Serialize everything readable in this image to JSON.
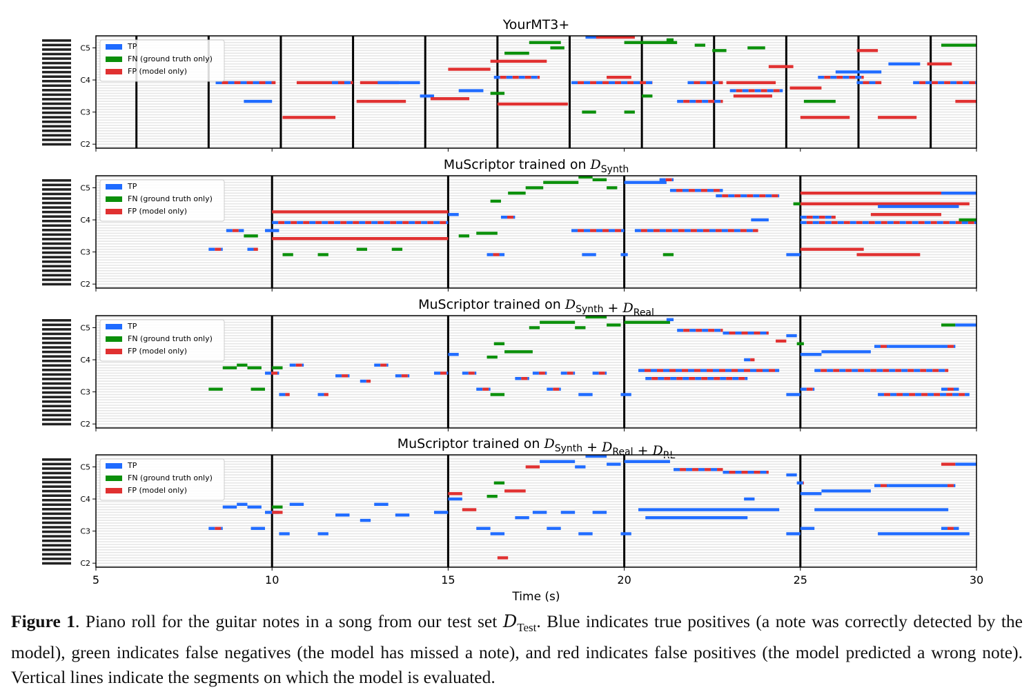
{
  "colors": {
    "tp": "#1f6bff",
    "fn": "#0a8f0a",
    "fp": "#e03030",
    "grid": "#e6e6e6",
    "frame": "#000000"
  },
  "y_ticks": [
    "C2",
    "C3",
    "C4",
    "C5"
  ],
  "x_ticks": [
    "5",
    "10",
    "15",
    "20",
    "25",
    "30"
  ],
  "x_label": "Time (s)",
  "legend": {
    "tp": "TP",
    "fn": "FN (ground truth only)",
    "fp": "FP (model only)"
  },
  "caption": {
    "label": "Figure 1",
    "part1": ". Piano roll for the guitar notes in a song from our test set ",
    "test_sym": "D",
    "test_sub": "Test",
    "part2": ". Blue indicates true positives (a note was correctly detected by the model), green indicates false negatives (the model has missed a note), and red indicates false positives (the model predicted a wrong note). Vertical lines indicate the segments on which the model is evaluated."
  },
  "chart_data": [
    {
      "type": "piano-roll",
      "title": "YourMT3+",
      "xlim": [
        5,
        30
      ],
      "ylim": [
        "C2",
        "C5"
      ],
      "segment_boundaries": [
        6.15,
        8.2,
        10.25,
        12.3,
        14.35,
        16.4,
        18.45,
        20.5,
        22.55,
        24.6,
        26.65,
        28.7
      ],
      "notes": [
        [
          8.4,
          10.1,
          59,
          "mix"
        ],
        [
          9.2,
          10.0,
          52,
          "tp"
        ],
        [
          10.3,
          11.8,
          46,
          "fp"
        ],
        [
          10.7,
          12.2,
          59,
          "fp"
        ],
        [
          11.7,
          12.3,
          59,
          "mix"
        ],
        [
          12.5,
          13.6,
          59,
          "fp"
        ],
        [
          12.4,
          13.8,
          52,
          "fp"
        ],
        [
          13.0,
          14.2,
          59,
          "tp"
        ],
        [
          14.2,
          14.6,
          54,
          "tp"
        ],
        [
          14.5,
          15.6,
          53,
          "fp"
        ],
        [
          15.0,
          16.2,
          64,
          "fp"
        ],
        [
          15.3,
          16.0,
          56,
          "tp"
        ],
        [
          16.2,
          17.8,
          67,
          "fp"
        ],
        [
          16.3,
          17.6,
          61,
          "mix"
        ],
        [
          16.4,
          18.4,
          51,
          "fp"
        ],
        [
          16.2,
          16.6,
          55,
          "fn"
        ],
        [
          16.6,
          17.3,
          70,
          "fn"
        ],
        [
          17.3,
          18.2,
          74,
          "fn"
        ],
        [
          17.9,
          18.3,
          72,
          "fn"
        ],
        [
          18.5,
          20.8,
          59,
          "mix"
        ],
        [
          18.9,
          19.3,
          76,
          "tp"
        ],
        [
          19.2,
          20.3,
          76,
          "fp"
        ],
        [
          19.5,
          20.2,
          61,
          "fp"
        ],
        [
          18.8,
          19.2,
          48,
          "fn"
        ],
        [
          20.0,
          20.3,
          48,
          "fn"
        ],
        [
          20.0,
          21.5,
          74,
          "fn"
        ],
        [
          21.2,
          21.4,
          75,
          "fn"
        ],
        [
          20.5,
          20.8,
          54,
          "fn"
        ],
        [
          21.5,
          22.8,
          52,
          "mix"
        ],
        [
          21.8,
          22.8,
          59,
          "mix"
        ],
        [
          22.0,
          22.3,
          73,
          "fn"
        ],
        [
          22.5,
          22.9,
          71,
          "fn"
        ],
        [
          22.9,
          24.3,
          59,
          "fp"
        ],
        [
          23.0,
          24.5,
          56,
          "mix"
        ],
        [
          23.1,
          24.2,
          54,
          "fp"
        ],
        [
          23.5,
          24.0,
          72,
          "fn"
        ],
        [
          24.1,
          24.8,
          65,
          "fp"
        ],
        [
          24.7,
          25.6,
          57,
          "fp"
        ],
        [
          25.0,
          26.4,
          46,
          "fp"
        ],
        [
          25.1,
          26.0,
          52,
          "fn"
        ],
        [
          25.5,
          26.8,
          61,
          "mix"
        ],
        [
          26.0,
          27.3,
          63,
          "tp"
        ],
        [
          26.6,
          27.2,
          71,
          "fp"
        ],
        [
          26.6,
          27.3,
          59,
          "mix"
        ],
        [
          27.2,
          28.3,
          46,
          "fp"
        ],
        [
          27.5,
          28.4,
          66,
          "tp"
        ],
        [
          28.2,
          30.0,
          59,
          "mix"
        ],
        [
          28.6,
          29.3,
          66,
          "fp"
        ],
        [
          29.0,
          30.0,
          73,
          "fn"
        ],
        [
          29.4,
          30.0,
          52,
          "fp"
        ]
      ]
    },
    {
      "type": "piano-roll",
      "title": "MuScriptor trained on",
      "title_terms": [
        {
          "sym": "D",
          "sub": "Synth"
        }
      ],
      "xlim": [
        5,
        30
      ],
      "ylim": [
        "C2",
        "C5"
      ],
      "segment_boundaries": [
        10,
        15,
        20,
        25
      ],
      "notes": [
        [
          8.2,
          8.6,
          49,
          "mix"
        ],
        [
          8.7,
          9.2,
          56,
          "mix"
        ],
        [
          9.2,
          9.6,
          54,
          "fn"
        ],
        [
          9.3,
          9.6,
          49,
          "mix"
        ],
        [
          9.8,
          10.2,
          56,
          "tp"
        ],
        [
          10.0,
          15.0,
          63,
          "fp"
        ],
        [
          10.0,
          15.0,
          59,
          "mix"
        ],
        [
          10.0,
          15.0,
          53,
          "fp"
        ],
        [
          10.3,
          10.6,
          47,
          "fn"
        ],
        [
          11.3,
          11.6,
          47,
          "fn"
        ],
        [
          12.4,
          12.7,
          49,
          "fn"
        ],
        [
          13.4,
          13.7,
          49,
          "fn"
        ],
        [
          15.0,
          15.3,
          62,
          "tp"
        ],
        [
          15.3,
          15.6,
          54,
          "fn"
        ],
        [
          15.8,
          16.4,
          55,
          "fn"
        ],
        [
          16.1,
          16.6,
          47,
          "mix"
        ],
        [
          16.5,
          16.9,
          61,
          "mix"
        ],
        [
          16.2,
          16.5,
          67,
          "fn"
        ],
        [
          16.7,
          17.2,
          70,
          "fn"
        ],
        [
          17.2,
          17.7,
          72,
          "fn"
        ],
        [
          17.7,
          18.7,
          74,
          "fn"
        ],
        [
          18.7,
          19.1,
          76,
          "fn"
        ],
        [
          19.1,
          19.5,
          75,
          "fn"
        ],
        [
          19.5,
          19.8,
          72,
          "fn"
        ],
        [
          18.5,
          20.0,
          56,
          "mix"
        ],
        [
          18.8,
          19.2,
          47,
          "tp"
        ],
        [
          19.9,
          20.1,
          47,
          "tp"
        ],
        [
          20.0,
          21.2,
          74,
          "tp"
        ],
        [
          21.0,
          21.4,
          75,
          "mix"
        ],
        [
          21.3,
          22.8,
          71,
          "mix"
        ],
        [
          21.1,
          21.4,
          47,
          "fn"
        ],
        [
          20.3,
          23.8,
          56,
          "mix"
        ],
        [
          22.6,
          24.4,
          69,
          "mix"
        ],
        [
          23.6,
          24.1,
          60,
          "tp"
        ],
        [
          24.6,
          25.0,
          47,
          "tp"
        ],
        [
          24.8,
          25.0,
          66,
          "fn"
        ],
        [
          25.0,
          30.0,
          70,
          "fp"
        ],
        [
          25.0,
          29.8,
          66,
          "fp"
        ],
        [
          25.0,
          26.0,
          61,
          "mix"
        ],
        [
          25.0,
          30.0,
          59,
          "mix"
        ],
        [
          25.0,
          26.8,
          49,
          "fp"
        ],
        [
          26.6,
          28.4,
          47,
          "fp"
        ],
        [
          27.0,
          29.0,
          62,
          "fp"
        ],
        [
          27.2,
          29.5,
          65,
          "tp"
        ],
        [
          29.0,
          30.0,
          70,
          "tp"
        ],
        [
          29.5,
          30.0,
          60,
          "fn"
        ]
      ]
    },
    {
      "type": "piano-roll",
      "title": "MuScriptor trained on",
      "title_terms": [
        {
          "sym": "D",
          "sub": "Synth"
        },
        {
          "sym": "D",
          "sub": "Real"
        }
      ],
      "xlim": [
        5,
        30
      ],
      "ylim": [
        "C2",
        "C5"
      ],
      "segment_boundaries": [
        10,
        15,
        20,
        25
      ],
      "notes": [
        [
          8.2,
          8.6,
          49,
          "fn"
        ],
        [
          8.6,
          9.0,
          57,
          "fn"
        ],
        [
          9.0,
          9.3,
          58,
          "fn"
        ],
        [
          9.3,
          9.7,
          57,
          "fn"
        ],
        [
          9.4,
          9.8,
          49,
          "fn"
        ],
        [
          9.8,
          10.2,
          55,
          "mix"
        ],
        [
          10.0,
          10.3,
          57,
          "fn"
        ],
        [
          10.2,
          10.5,
          47,
          "mix"
        ],
        [
          10.5,
          10.9,
          58,
          "mix"
        ],
        [
          11.3,
          11.6,
          47,
          "mix"
        ],
        [
          11.8,
          12.2,
          54,
          "mix"
        ],
        [
          12.5,
          12.8,
          52,
          "mix"
        ],
        [
          12.9,
          13.3,
          58,
          "mix"
        ],
        [
          13.5,
          13.9,
          54,
          "mix"
        ],
        [
          14.6,
          15.0,
          55,
          "mix"
        ],
        [
          15.0,
          15.3,
          62,
          "tp"
        ],
        [
          15.4,
          15.8,
          55,
          "mix"
        ],
        [
          15.8,
          16.2,
          49,
          "mix"
        ],
        [
          16.1,
          16.4,
          61,
          "fn"
        ],
        [
          16.2,
          16.6,
          47,
          "fn"
        ],
        [
          16.3,
          16.6,
          66,
          "fn"
        ],
        [
          16.6,
          17.4,
          63,
          "fn"
        ],
        [
          16.9,
          17.3,
          53,
          "mix"
        ],
        [
          17.4,
          17.8,
          55,
          "mix"
        ],
        [
          17.8,
          18.2,
          49,
          "mix"
        ],
        [
          18.2,
          18.6,
          55,
          "mix"
        ],
        [
          18.7,
          19.1,
          47,
          "tp"
        ],
        [
          19.1,
          19.5,
          55,
          "mix"
        ],
        [
          19.9,
          20.2,
          47,
          "tp"
        ],
        [
          17.3,
          17.6,
          72,
          "fn"
        ],
        [
          17.6,
          18.6,
          74,
          "fn"
        ],
        [
          18.6,
          18.9,
          72,
          "fn"
        ],
        [
          18.9,
          19.5,
          76,
          "fn"
        ],
        [
          19.5,
          19.9,
          73,
          "fn"
        ],
        [
          20.0,
          21.3,
          74,
          "fn"
        ],
        [
          21.2,
          21.4,
          75,
          "tp"
        ],
        [
          21.5,
          22.8,
          71,
          "mix"
        ],
        [
          20.4,
          24.4,
          56,
          "mix"
        ],
        [
          20.6,
          23.5,
          53,
          "mix"
        ],
        [
          22.8,
          24.1,
          70,
          "mix"
        ],
        [
          23.4,
          23.7,
          60,
          "mix"
        ],
        [
          24.3,
          24.6,
          67,
          "fp"
        ],
        [
          24.6,
          24.9,
          69,
          "tp"
        ],
        [
          24.6,
          25.0,
          47,
          "tp"
        ],
        [
          24.9,
          25.1,
          66,
          "fn"
        ],
        [
          25.0,
          25.6,
          62,
          "tp"
        ],
        [
          25.6,
          27.0,
          63,
          "tp"
        ],
        [
          25.4,
          29.2,
          56,
          "mix"
        ],
        [
          25.0,
          25.4,
          49,
          "mix"
        ],
        [
          27.1,
          27.5,
          65,
          "mix"
        ],
        [
          27.5,
          29.0,
          65,
          "tp"
        ],
        [
          29.0,
          29.4,
          65,
          "mix"
        ],
        [
          29.0,
          29.4,
          73,
          "fn"
        ],
        [
          29.4,
          30.0,
          73,
          "tp"
        ],
        [
          27.2,
          29.8,
          47,
          "mix"
        ],
        [
          29.0,
          29.5,
          49,
          "mix"
        ]
      ]
    },
    {
      "type": "piano-roll",
      "title": "MuScriptor trained on",
      "title_terms": [
        {
          "sym": "D",
          "sub": "Synth"
        },
        {
          "sym": "D",
          "sub": "Real"
        },
        {
          "sym": "D",
          "sub": "RL"
        }
      ],
      "xlim": [
        5,
        30
      ],
      "ylim": [
        "C2",
        "C5"
      ],
      "segment_boundaries": [
        10,
        15,
        20,
        25
      ],
      "notes": [
        [
          8.2,
          8.6,
          49,
          "mix"
        ],
        [
          8.6,
          9.0,
          57,
          "tp"
        ],
        [
          9.0,
          9.3,
          58,
          "tp"
        ],
        [
          9.3,
          9.7,
          57,
          "tp"
        ],
        [
          9.4,
          9.8,
          49,
          "tp"
        ],
        [
          9.8,
          10.2,
          55,
          "tp"
        ],
        [
          10.0,
          10.3,
          55,
          "fp"
        ],
        [
          10.0,
          10.3,
          57,
          "fn"
        ],
        [
          10.2,
          10.5,
          47,
          "tp"
        ],
        [
          10.5,
          10.9,
          58,
          "tp"
        ],
        [
          11.3,
          11.6,
          47,
          "tp"
        ],
        [
          11.8,
          12.2,
          54,
          "tp"
        ],
        [
          12.5,
          12.8,
          52,
          "tp"
        ],
        [
          12.9,
          13.3,
          58,
          "tp"
        ],
        [
          13.5,
          13.9,
          54,
          "tp"
        ],
        [
          14.6,
          15.0,
          55,
          "tp"
        ],
        [
          15.0,
          15.4,
          62,
          "fp"
        ],
        [
          15.0,
          15.4,
          60,
          "tp"
        ],
        [
          15.4,
          15.8,
          56,
          "fp"
        ],
        [
          15.8,
          16.2,
          49,
          "tp"
        ],
        [
          16.1,
          16.4,
          61,
          "fn"
        ],
        [
          16.2,
          16.6,
          47,
          "tp"
        ],
        [
          16.3,
          16.6,
          66,
          "fn"
        ],
        [
          16.6,
          17.2,
          63,
          "fp"
        ],
        [
          16.4,
          16.7,
          38,
          "fp"
        ],
        [
          16.9,
          17.3,
          53,
          "tp"
        ],
        [
          17.4,
          17.8,
          55,
          "tp"
        ],
        [
          17.8,
          18.2,
          49,
          "tp"
        ],
        [
          18.2,
          18.6,
          55,
          "tp"
        ],
        [
          18.7,
          19.1,
          47,
          "tp"
        ],
        [
          19.1,
          19.5,
          55,
          "tp"
        ],
        [
          19.9,
          20.2,
          47,
          "tp"
        ],
        [
          17.2,
          17.6,
          72,
          "fp"
        ],
        [
          17.6,
          18.6,
          74,
          "tp"
        ],
        [
          18.6,
          18.9,
          72,
          "tp"
        ],
        [
          18.9,
          19.5,
          76,
          "tp"
        ],
        [
          19.5,
          19.9,
          73,
          "tp"
        ],
        [
          20.0,
          21.3,
          74,
          "tp"
        ],
        [
          21.4,
          22.8,
          71,
          "mix"
        ],
        [
          20.4,
          24.4,
          56,
          "tp"
        ],
        [
          20.6,
          23.5,
          53,
          "tp"
        ],
        [
          22.8,
          24.1,
          70,
          "mix"
        ],
        [
          23.4,
          23.7,
          60,
          "tp"
        ],
        [
          24.6,
          24.9,
          69,
          "tp"
        ],
        [
          24.6,
          25.0,
          47,
          "tp"
        ],
        [
          24.9,
          25.1,
          66,
          "mix"
        ],
        [
          25.0,
          25.6,
          62,
          "tp"
        ],
        [
          25.6,
          27.0,
          63,
          "tp"
        ],
        [
          25.4,
          29.2,
          56,
          "tp"
        ],
        [
          25.0,
          25.4,
          49,
          "tp"
        ],
        [
          27.1,
          27.5,
          65,
          "mix"
        ],
        [
          27.5,
          29.0,
          65,
          "tp"
        ],
        [
          29.0,
          29.4,
          65,
          "mix"
        ],
        [
          29.0,
          29.4,
          73,
          "fp"
        ],
        [
          29.4,
          30.0,
          73,
          "tp"
        ],
        [
          27.2,
          29.8,
          47,
          "tp"
        ],
        [
          29.0,
          29.5,
          49,
          "mix"
        ]
      ]
    }
  ]
}
